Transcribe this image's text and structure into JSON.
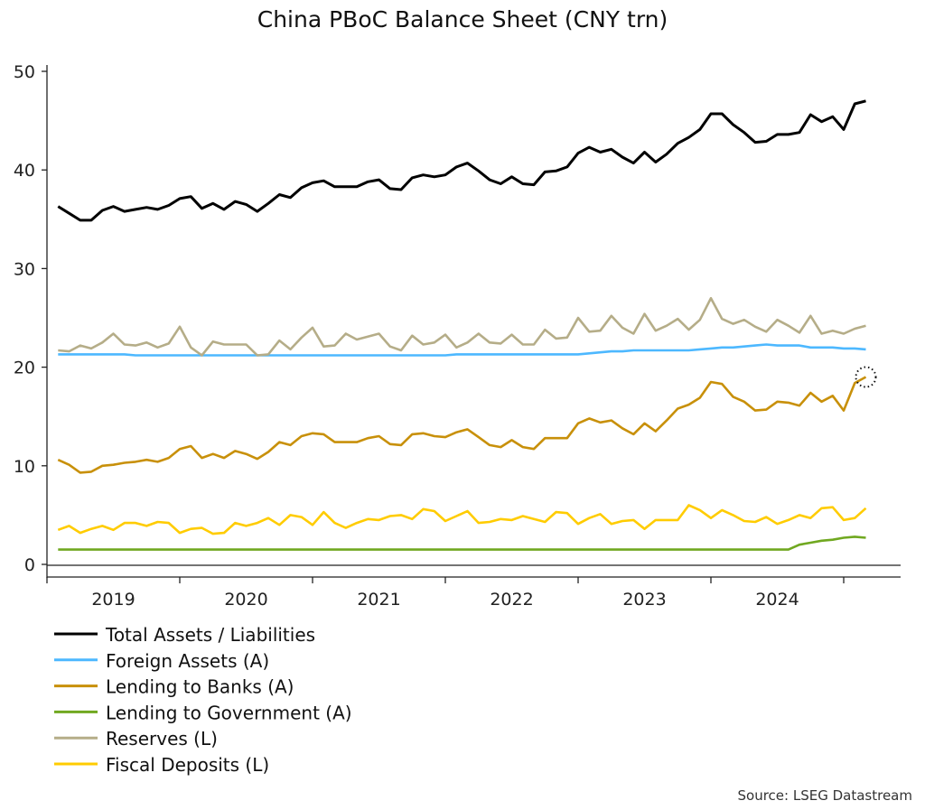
{
  "chart_data": {
    "type": "line",
    "title": "China PBoC Balance Sheet (CNY trn)",
    "xlabel": "",
    "ylabel": "",
    "ylim": [
      0,
      50
    ],
    "yticks": [
      "0",
      "10",
      "20",
      "30",
      "40",
      "50"
    ],
    "xticks": [
      "2019",
      "2020",
      "2021",
      "2022",
      "2023",
      "2024"
    ],
    "x_frequency": "monthly",
    "x_start": "2019-01",
    "x_end": "2025-02",
    "grid": false,
    "legend_placement": "bottom-left",
    "source": "Source: LSEG Datastream",
    "highlight": {
      "series": "Lending to Banks (A)",
      "point": "last",
      "marker": "dotted-circle"
    },
    "series": [
      {
        "name": "Total Assets / Liabilities",
        "color": "#000000",
        "values": [
          36.3,
          35.6,
          34.9,
          34.9,
          35.9,
          36.3,
          35.8,
          36.0,
          36.2,
          36.0,
          36.4,
          37.1,
          37.3,
          36.1,
          36.6,
          36.0,
          36.8,
          36.5,
          35.8,
          36.6,
          37.5,
          37.2,
          38.2,
          38.7,
          38.9,
          38.3,
          38.3,
          38.3,
          38.8,
          39.0,
          38.1,
          38.0,
          39.2,
          39.5,
          39.3,
          39.5,
          40.3,
          40.7,
          39.9,
          39.0,
          38.6,
          39.3,
          38.6,
          38.5,
          39.8,
          39.9,
          40.3,
          41.7,
          42.3,
          41.8,
          42.1,
          41.3,
          40.7,
          41.8,
          40.8,
          41.6,
          42.7,
          43.3,
          44.1,
          45.7,
          45.7,
          44.6,
          43.8,
          42.8,
          42.9,
          43.6,
          43.6,
          43.8,
          45.6,
          44.9,
          45.4,
          44.1,
          46.7,
          47.0
        ]
      },
      {
        "name": "Foreign Assets (A)",
        "color": "#4db8ff",
        "values": [
          21.3,
          21.3,
          21.3,
          21.3,
          21.3,
          21.3,
          21.3,
          21.2,
          21.2,
          21.2,
          21.2,
          21.2,
          21.2,
          21.2,
          21.2,
          21.2,
          21.2,
          21.2,
          21.2,
          21.2,
          21.2,
          21.2,
          21.2,
          21.2,
          21.2,
          21.2,
          21.2,
          21.2,
          21.2,
          21.2,
          21.2,
          21.2,
          21.2,
          21.2,
          21.2,
          21.2,
          21.3,
          21.3,
          21.3,
          21.3,
          21.3,
          21.3,
          21.3,
          21.3,
          21.3,
          21.3,
          21.3,
          21.3,
          21.4,
          21.5,
          21.6,
          21.6,
          21.7,
          21.7,
          21.7,
          21.7,
          21.7,
          21.7,
          21.8,
          21.9,
          22.0,
          22.0,
          22.1,
          22.2,
          22.3,
          22.2,
          22.2,
          22.2,
          22.0,
          22.0,
          22.0,
          21.9,
          21.9,
          21.8
        ]
      },
      {
        "name": "Lending to Banks (A)",
        "color": "#c8900a",
        "values": [
          10.6,
          10.1,
          9.3,
          9.4,
          10.0,
          10.1,
          10.3,
          10.4,
          10.6,
          10.4,
          10.8,
          11.7,
          12.0,
          10.8,
          11.2,
          10.8,
          11.5,
          11.2,
          10.7,
          11.4,
          12.4,
          12.1,
          13.0,
          13.3,
          13.2,
          12.4,
          12.4,
          12.4,
          12.8,
          13.0,
          12.2,
          12.1,
          13.2,
          13.3,
          13.0,
          12.9,
          13.4,
          13.7,
          12.9,
          12.1,
          11.9,
          12.6,
          11.9,
          11.7,
          12.8,
          12.8,
          12.8,
          14.3,
          14.8,
          14.4,
          14.6,
          13.8,
          13.2,
          14.3,
          13.5,
          14.6,
          15.8,
          16.2,
          16.9,
          18.5,
          18.3,
          17.0,
          16.5,
          15.6,
          15.7,
          16.5,
          16.4,
          16.1,
          17.4,
          16.5,
          17.1,
          15.6,
          18.4,
          19.0
        ]
      },
      {
        "name": "Lending to Government (A)",
        "color": "#70a820",
        "values": [
          1.5,
          1.5,
          1.5,
          1.5,
          1.5,
          1.5,
          1.5,
          1.5,
          1.5,
          1.5,
          1.5,
          1.5,
          1.5,
          1.5,
          1.5,
          1.5,
          1.5,
          1.5,
          1.5,
          1.5,
          1.5,
          1.5,
          1.5,
          1.5,
          1.5,
          1.5,
          1.5,
          1.5,
          1.5,
          1.5,
          1.5,
          1.5,
          1.5,
          1.5,
          1.5,
          1.5,
          1.5,
          1.5,
          1.5,
          1.5,
          1.5,
          1.5,
          1.5,
          1.5,
          1.5,
          1.5,
          1.5,
          1.5,
          1.5,
          1.5,
          1.5,
          1.5,
          1.5,
          1.5,
          1.5,
          1.5,
          1.5,
          1.5,
          1.5,
          1.5,
          1.5,
          1.5,
          1.5,
          1.5,
          1.5,
          1.5,
          1.5,
          2.0,
          2.2,
          2.4,
          2.5,
          2.7,
          2.8,
          2.7
        ]
      },
      {
        "name": "Reserves (L)",
        "color": "#b5ad88",
        "values": [
          21.7,
          21.6,
          22.2,
          21.9,
          22.5,
          23.4,
          22.3,
          22.2,
          22.5,
          22.0,
          22.4,
          24.1,
          22.0,
          21.2,
          22.6,
          22.3,
          22.3,
          22.3,
          21.2,
          21.3,
          22.7,
          21.8,
          23.0,
          24.0,
          22.1,
          22.2,
          23.4,
          22.8,
          23.1,
          23.4,
          22.1,
          21.7,
          23.2,
          22.3,
          22.5,
          23.3,
          22.0,
          22.5,
          23.4,
          22.5,
          22.4,
          23.3,
          22.3,
          22.3,
          23.8,
          22.9,
          23.0,
          25.0,
          23.6,
          23.7,
          25.2,
          24.0,
          23.4,
          25.4,
          23.7,
          24.2,
          24.9,
          23.8,
          24.8,
          27.0,
          24.9,
          24.4,
          24.8,
          24.1,
          23.6,
          24.8,
          24.2,
          23.5,
          25.2,
          23.4,
          23.7,
          23.4,
          23.9,
          24.2
        ]
      },
      {
        "name": "Fiscal Deposits (L)",
        "color": "#ffcc00",
        "values": [
          3.5,
          3.9,
          3.2,
          3.6,
          3.9,
          3.5,
          4.2,
          4.2,
          3.9,
          4.3,
          4.2,
          3.2,
          3.6,
          3.7,
          3.1,
          3.2,
          4.2,
          3.9,
          4.2,
          4.7,
          4.0,
          5.0,
          4.8,
          4.0,
          5.3,
          4.2,
          3.7,
          4.2,
          4.6,
          4.5,
          4.9,
          5.0,
          4.6,
          5.6,
          5.4,
          4.4,
          4.9,
          5.4,
          4.2,
          4.3,
          4.6,
          4.5,
          4.9,
          4.6,
          4.3,
          5.3,
          5.2,
          4.1,
          4.7,
          5.1,
          4.1,
          4.4,
          4.5,
          3.6,
          4.5,
          4.5,
          4.5,
          6.0,
          5.5,
          4.7,
          5.5,
          5.0,
          4.4,
          4.3,
          4.8,
          4.1,
          4.5,
          5.0,
          4.7,
          5.7,
          5.8,
          4.5,
          4.7,
          5.7
        ]
      }
    ]
  }
}
